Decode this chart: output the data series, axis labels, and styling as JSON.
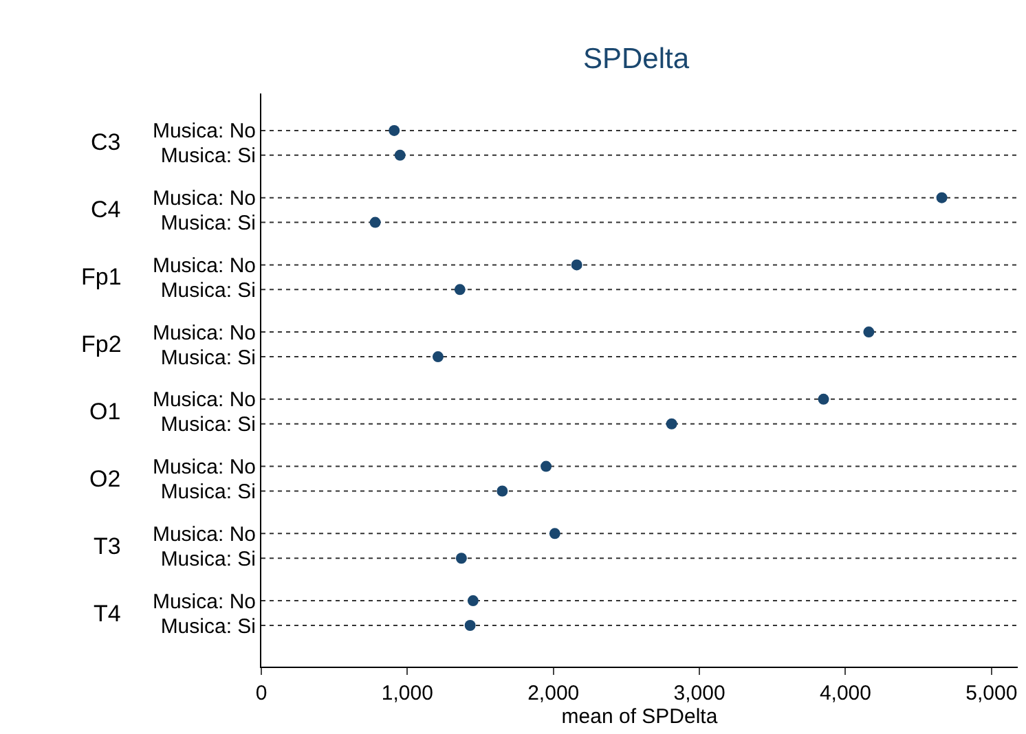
{
  "chart_data": {
    "type": "scatter",
    "orientation": "horizontal",
    "title": "SPDelta",
    "xlabel": "mean of SPDelta",
    "categories": [
      "Musica: No",
      "Musica: Si",
      "Musica: No",
      "Musica: Si",
      "Musica: No",
      "Musica: Si",
      "Musica: No",
      "Musica: Si",
      "Musica: No",
      "Musica: Si",
      "Musica: No",
      "Musica: Si",
      "Musica: No",
      "Musica: Si",
      "Musica: No",
      "Musica: Si"
    ],
    "annotations": [
      "C3",
      "C4",
      "Fp1",
      "Fp2",
      "O1",
      "O2",
      "T3",
      "T4"
    ],
    "series": [
      {
        "color": "#1a476f",
        "values": [
          910,
          950,
          4660,
          780,
          2160,
          1360,
          4160,
          1210,
          3850,
          2810,
          1950,
          1650,
          2010,
          1370,
          1450,
          1430
        ]
      }
    ],
    "xlim": [
      0,
      5180
    ],
    "xticks": [
      0,
      {
        "value": 1000,
        "label": "1,000"
      },
      {
        "value": 2000,
        "label": "2,000"
      },
      {
        "value": 3000,
        "label": "3,000"
      },
      {
        "value": 4000,
        "label": "4,000"
      },
      {
        "value": 5000,
        "label": "5,000"
      }
    ],
    "grid": "y",
    "marker": "circle"
  }
}
